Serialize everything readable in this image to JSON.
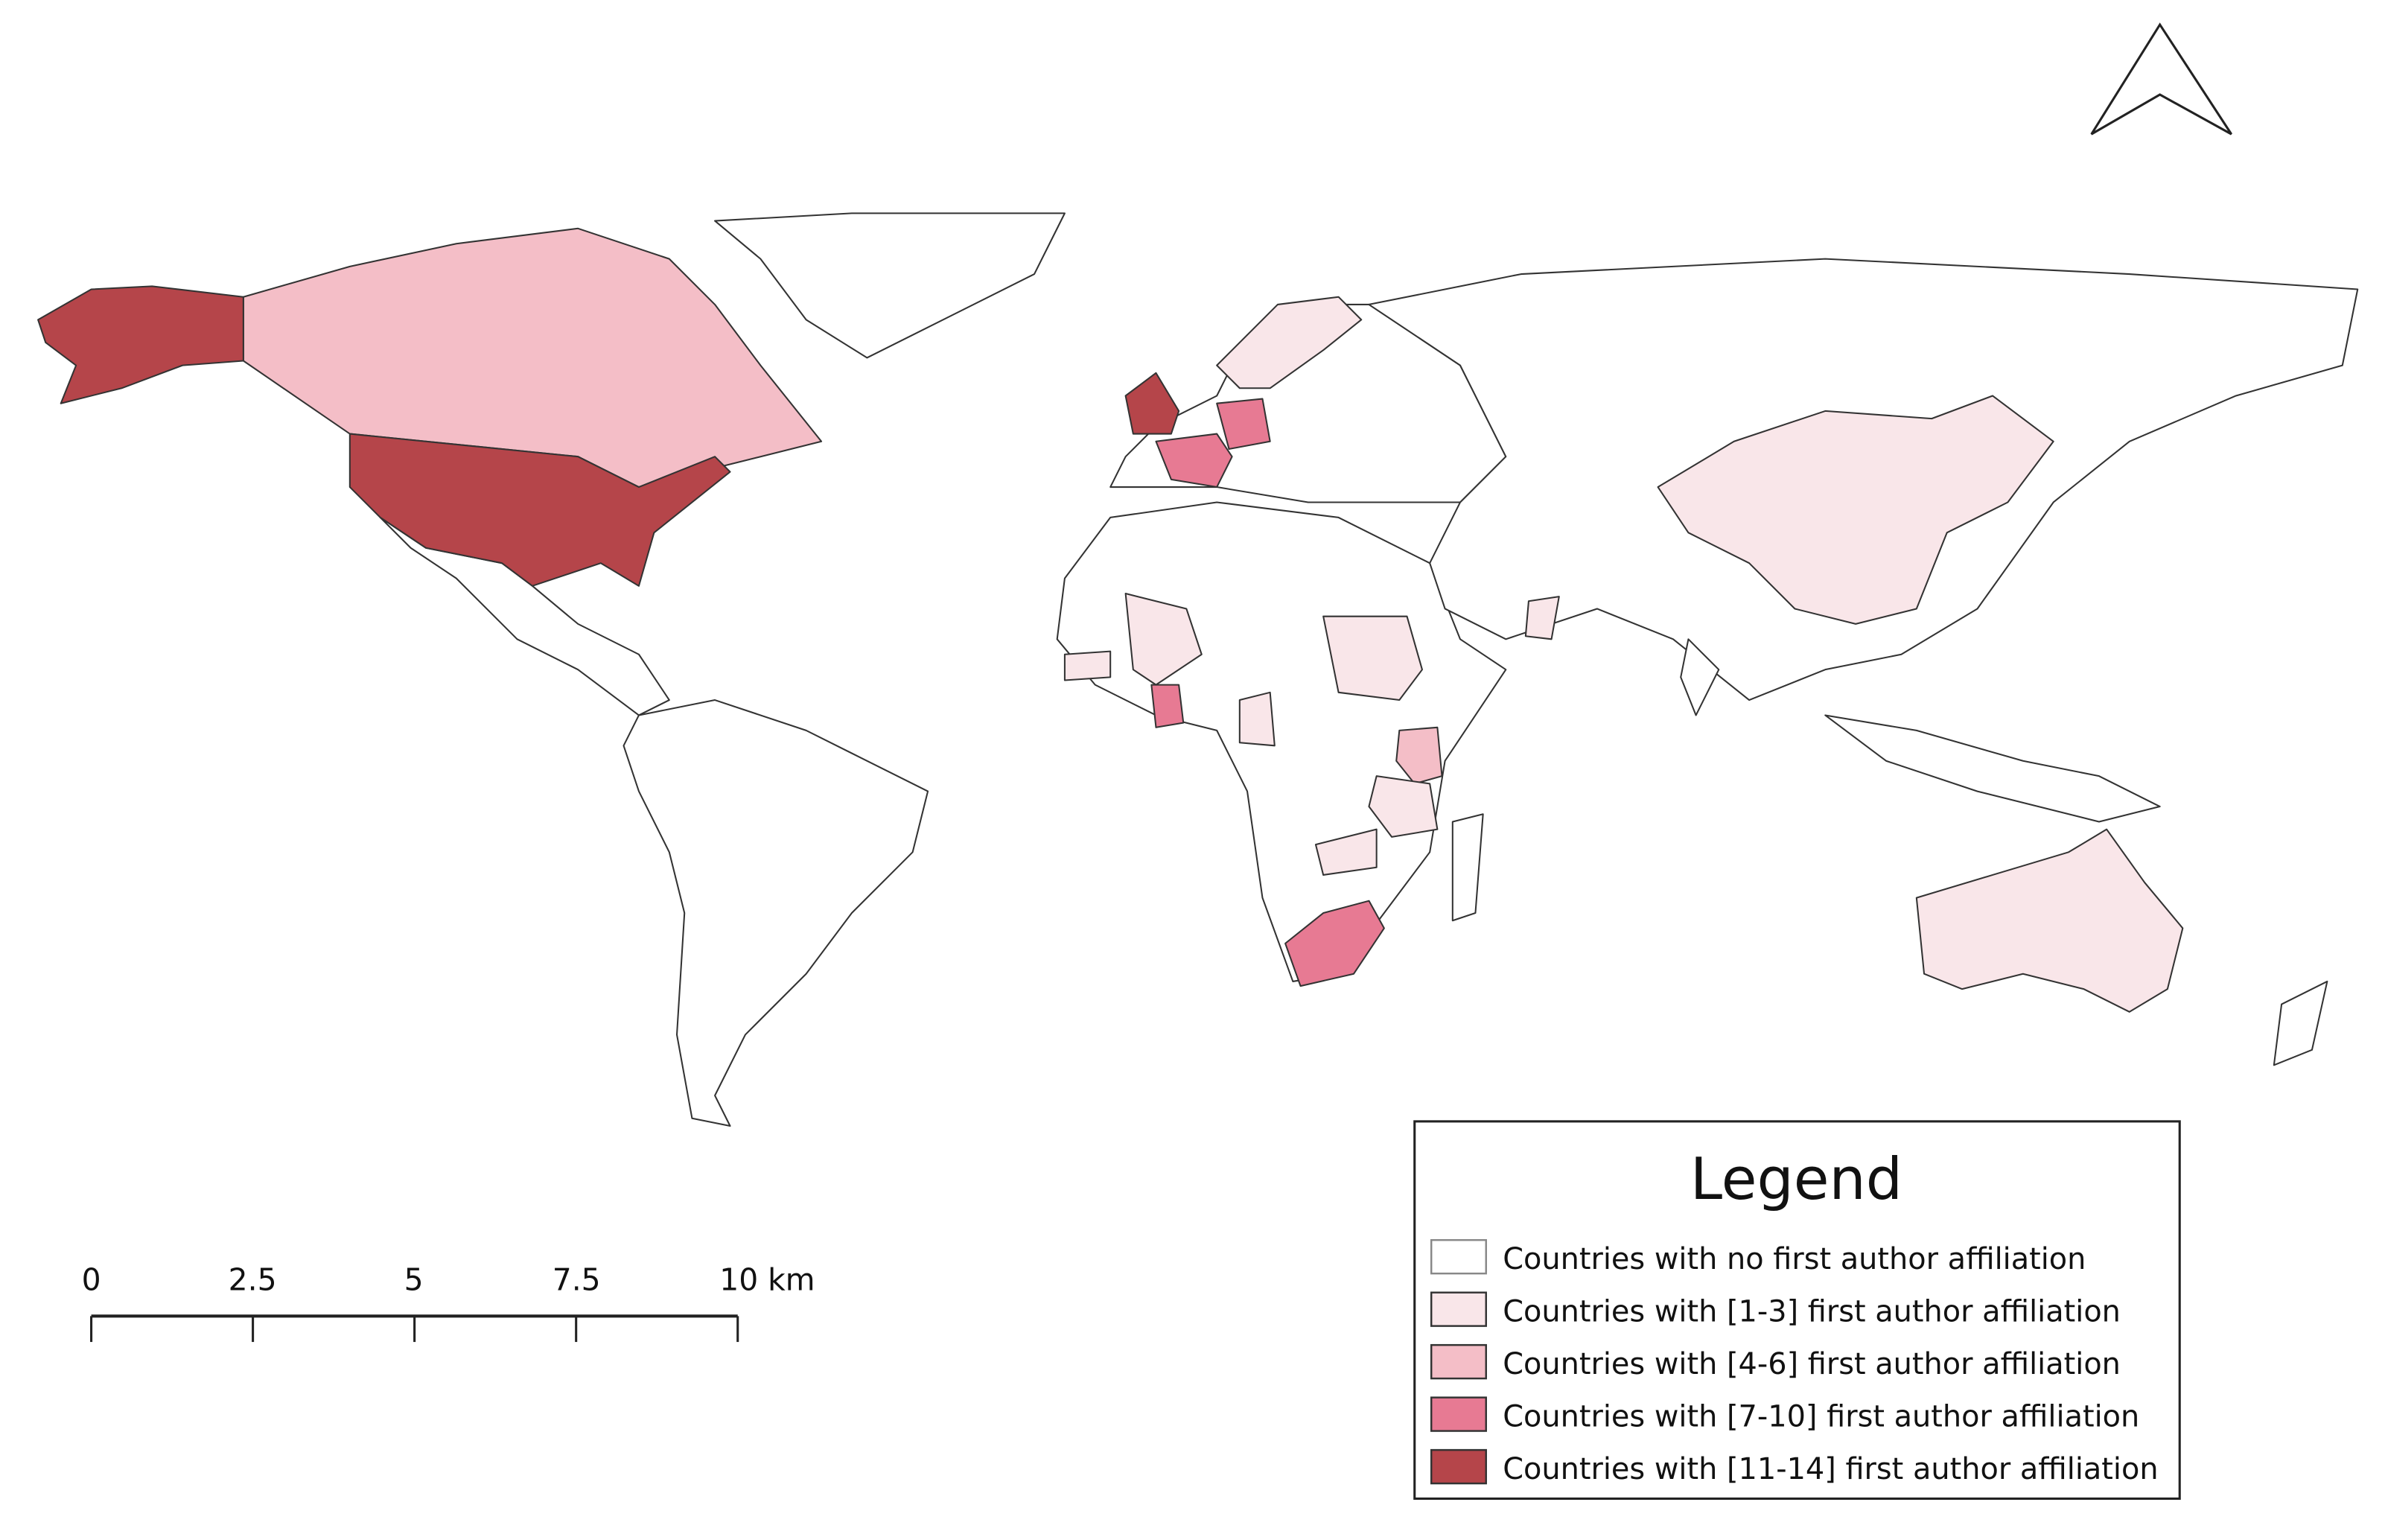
{
  "legend": {
    "title": "Legend",
    "items": [
      {
        "label": "Countries with no first author affiliation",
        "color": "#ffffff"
      },
      {
        "label": "Countries with [1-3] first author affiliation",
        "color": "#f9e6e9"
      },
      {
        "label": "Countries with [4-6] first author affiliation",
        "color": "#f4bec7"
      },
      {
        "label": "Countries with [7-10] first author affiliation",
        "color": "#e77a93"
      },
      {
        "label": "Countries with [11-14] first author affiliation",
        "color": "#b5454a"
      }
    ]
  },
  "scale_bar": {
    "ticks": [
      "0",
      "2.5",
      "5",
      "7.5",
      "10 km"
    ]
  },
  "north_arrow": {
    "icon": "north-arrow-icon"
  }
}
